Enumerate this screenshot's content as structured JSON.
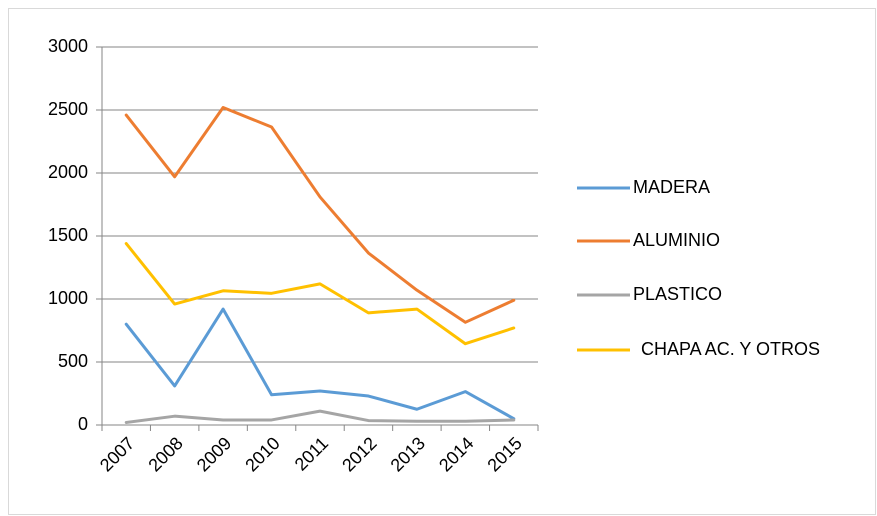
{
  "chart_data": {
    "type": "line",
    "categories": [
      "2007",
      "2008",
      "2009",
      "2010",
      "2011",
      "2012",
      "2013",
      "2014",
      "2015"
    ],
    "series": [
      {
        "name": "MADERA",
        "color": "#5b9bd5",
        "values": [
          800,
          310,
          920,
          240,
          270,
          230,
          125,
          265,
          50
        ]
      },
      {
        "name": "ALUMINIO",
        "color": "#ed7d31",
        "values": [
          2460,
          1970,
          2520,
          2365,
          1810,
          1365,
          1070,
          815,
          990
        ]
      },
      {
        "name": "PLASTICO",
        "color": "#a5a5a5",
        "values": [
          20,
          70,
          40,
          40,
          110,
          35,
          30,
          30,
          40
        ]
      },
      {
        "name": "CHAPA AC. Y OTROS",
        "color": "#ffc000",
        "values": [
          1440,
          960,
          1065,
          1045,
          1120,
          890,
          920,
          645,
          770
        ]
      }
    ],
    "ylim": [
      0,
      3000
    ],
    "yticks": [
      0,
      500,
      1000,
      1500,
      2000,
      2500,
      3000
    ],
    "grid": true,
    "legend": "right"
  }
}
